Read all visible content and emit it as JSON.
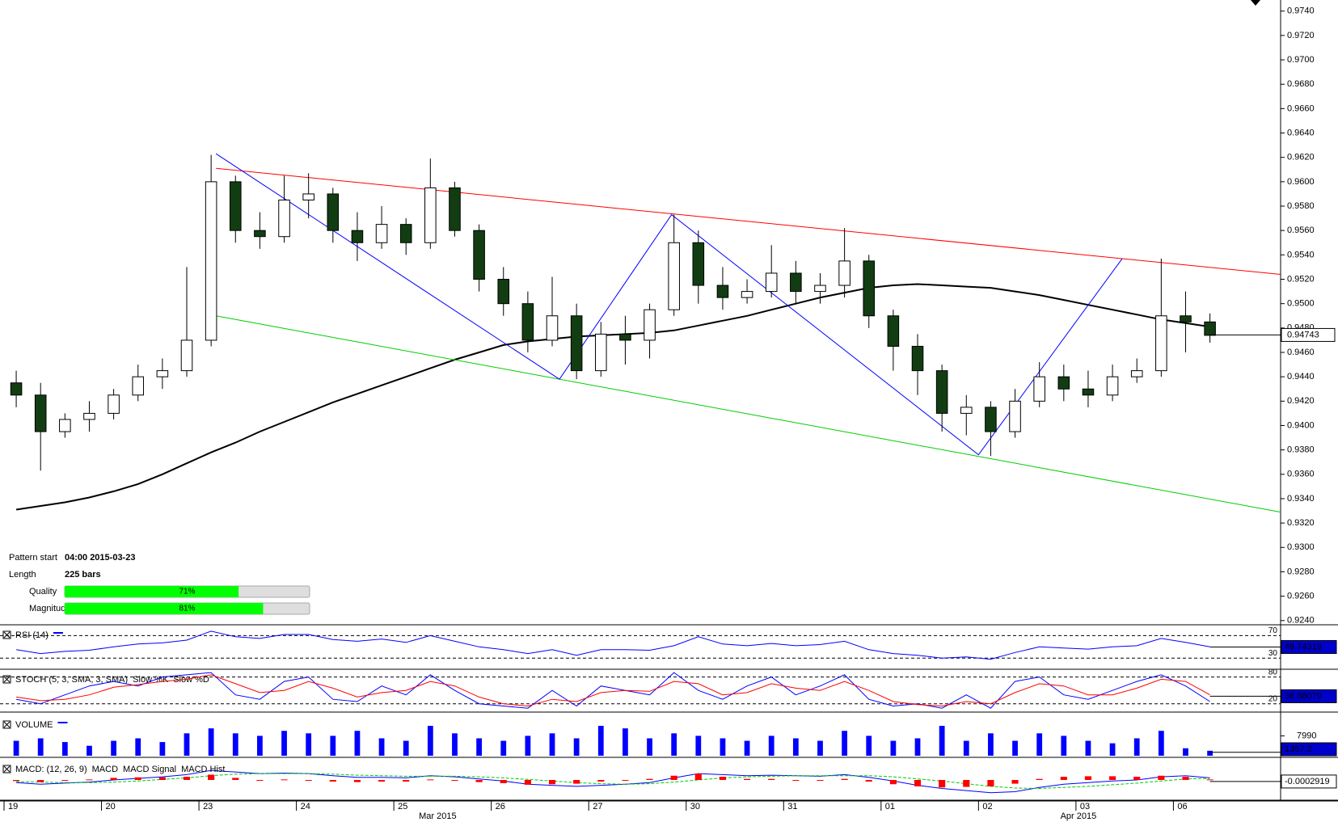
{
  "chart_data": {
    "type": "candlestick",
    "open": [
      0.9435,
      0.9425,
      0.9395,
      0.9405,
      0.941,
      0.9425,
      0.944,
      0.9445,
      0.947,
      0.96,
      0.956,
      0.9555,
      0.9585,
      0.959,
      0.956,
      0.955,
      0.9565,
      0.955,
      0.9595,
      0.956,
      0.952,
      0.95,
      0.947,
      0.949,
      0.9445,
      0.9475,
      0.947,
      0.9495,
      0.955,
      0.9515,
      0.9505,
      0.951,
      0.9525,
      0.951,
      0.9515,
      0.9535,
      0.949,
      0.9465,
      0.9445,
      0.941,
      0.9415,
      0.9395,
      0.942,
      0.944,
      0.943,
      0.9425,
      0.944,
      0.9445,
      0.949,
      0.9485
    ],
    "high": [
      0.9445,
      0.9435,
      0.941,
      0.942,
      0.943,
      0.945,
      0.9455,
      0.953,
      0.9622,
      0.9605,
      0.9575,
      0.9605,
      0.9607,
      0.9595,
      0.9575,
      0.958,
      0.957,
      0.9619,
      0.96,
      0.9565,
      0.953,
      0.951,
      0.9522,
      0.95,
      0.9485,
      0.949,
      0.95,
      0.9573,
      0.956,
      0.953,
      0.952,
      0.9548,
      0.9535,
      0.9525,
      0.9562,
      0.954,
      0.9495,
      0.9475,
      0.945,
      0.9425,
      0.942,
      0.943,
      0.9452,
      0.945,
      0.9445,
      0.945,
      0.9455,
      0.9537,
      0.951,
      0.9492
    ],
    "low": [
      0.9415,
      0.9363,
      0.939,
      0.9395,
      0.9405,
      0.942,
      0.943,
      0.944,
      0.9465,
      0.955,
      0.9545,
      0.955,
      0.957,
      0.955,
      0.9535,
      0.9545,
      0.954,
      0.9545,
      0.9555,
      0.951,
      0.949,
      0.946,
      0.9465,
      0.9438,
      0.944,
      0.945,
      0.9455,
      0.949,
      0.95,
      0.9495,
      0.95,
      0.9505,
      0.95,
      0.95,
      0.9505,
      0.948,
      0.9445,
      0.9425,
      0.9395,
      0.9392,
      0.9375,
      0.939,
      0.9415,
      0.942,
      0.9415,
      0.942,
      0.9435,
      0.944,
      0.946,
      0.9468
    ],
    "close": [
      0.9425,
      0.9395,
      0.9405,
      0.941,
      0.9425,
      0.944,
      0.9445,
      0.947,
      0.96,
      0.956,
      0.9555,
      0.9585,
      0.959,
      0.956,
      0.955,
      0.9565,
      0.955,
      0.9595,
      0.956,
      0.952,
      0.95,
      0.947,
      0.949,
      0.9445,
      0.9475,
      0.947,
      0.9495,
      0.955,
      0.9515,
      0.9505,
      0.951,
      0.9525,
      0.951,
      0.9515,
      0.9535,
      0.949,
      0.9465,
      0.9445,
      0.941,
      0.9415,
      0.9395,
      0.942,
      0.944,
      0.943,
      0.9425,
      0.944,
      0.9445,
      0.949,
      0.9485,
      0.9474
    ],
    "up_color": "#ffffff",
    "down_color": "#123d12",
    "xlim": [
      0,
      52.4
    ],
    "ylim": [
      0.92372,
      0.97491
    ],
    "yticks": [
      {
        "value": 0.974,
        "label": "0.9740"
      },
      {
        "value": 0.972,
        "label": "0.9720"
      },
      {
        "value": 0.97,
        "label": "0.9700"
      },
      {
        "value": 0.968,
        "label": "0.9680"
      },
      {
        "value": 0.966,
        "label": "0.9660"
      },
      {
        "value": 0.964,
        "label": "0.9640"
      },
      {
        "value": 0.962,
        "label": "0.9620"
      },
      {
        "value": 0.96,
        "label": "0.9600"
      },
      {
        "value": 0.958,
        "label": "0.9580"
      },
      {
        "value": 0.956,
        "label": "0.9560"
      },
      {
        "value": 0.954,
        "label": "0.9540"
      },
      {
        "value": 0.952,
        "label": "0.9520"
      },
      {
        "value": 0.95,
        "label": "0.9500"
      },
      {
        "value": 0.948,
        "label": "0.9480"
      },
      {
        "value": 0.946,
        "label": "0.9460"
      },
      {
        "value": 0.944,
        "label": "0.9440"
      },
      {
        "value": 0.942,
        "label": "0.9420"
      },
      {
        "value": 0.94,
        "label": "0.9400"
      },
      {
        "value": 0.938,
        "label": "0.9380"
      },
      {
        "value": 0.936,
        "label": "0.9360"
      },
      {
        "value": 0.934,
        "label": "0.9340"
      },
      {
        "value": 0.932,
        "label": "0.9320"
      },
      {
        "value": 0.93,
        "label": "0.9300"
      },
      {
        "value": 0.928,
        "label": "0.9280"
      },
      {
        "value": 0.926,
        "label": "0.9260"
      },
      {
        "value": 0.924,
        "label": "0.9240"
      }
    ],
    "x_labels": [
      {
        "value": 0,
        "label": "19"
      },
      {
        "value": 4,
        "label": "20"
      },
      {
        "value": 8,
        "label": "23"
      },
      {
        "value": 12,
        "label": "24"
      },
      {
        "value": 16,
        "label": "25"
      },
      {
        "value": 20,
        "label": "26"
      },
      {
        "value": 24,
        "label": "27"
      },
      {
        "value": 28,
        "label": "30"
      },
      {
        "value": 32,
        "label": "31"
      },
      {
        "value": 36,
        "label": "01"
      },
      {
        "value": 40,
        "label": "02"
      },
      {
        "value": 44,
        "label": "03"
      },
      {
        "value": 48,
        "label": "06"
      }
    ],
    "month_labels": [
      {
        "value": 17.8,
        "label": "Mar 2015"
      },
      {
        "value": 44.1,
        "label": "Apr 2015"
      }
    ],
    "moving_average": {
      "color": "#000000",
      "values": [
        0.9331,
        0.9334,
        0.9337,
        0.9341,
        0.9346,
        0.9352,
        0.936,
        0.9369,
        0.9378,
        0.9386,
        0.9395,
        0.9403,
        0.9411,
        0.9419,
        0.9426,
        0.9433,
        0.944,
        0.9447,
        0.9454,
        0.946,
        0.9466,
        0.9469,
        0.9471,
        0.9473,
        0.9474,
        0.9475,
        0.9476,
        0.9478,
        0.9482,
        0.9486,
        0.949,
        0.9495,
        0.95,
        0.9505,
        0.9509,
        0.9513,
        0.9515,
        0.9516,
        0.9515,
        0.9514,
        0.9513,
        0.951,
        0.9507,
        0.9503,
        0.9499,
        0.9495,
        0.9491,
        0.9487,
        0.9484,
        0.9481
      ]
    },
    "trend_lines": [
      {
        "color": "#ff0000",
        "x": [
          8.7,
          52.4
        ],
        "y": [
          0.9611,
          0.9524
        ]
      },
      {
        "color": "#00cc00",
        "x": [
          8.7,
          52.4
        ],
        "y": [
          0.949,
          0.9329
        ]
      },
      {
        "color": "#0000ff",
        "x": [
          8.7,
          22.8,
          27.4,
          40.0,
          45.9
        ],
        "y": [
          0.9623,
          0.9438,
          0.9573,
          0.9376,
          0.9537
        ]
      }
    ],
    "last_price": 0.94743,
    "panels": [
      {
        "type": "line",
        "title": "RSI (14)",
        "ylim": [
          13,
          85
        ],
        "levels": [
          70,
          30
        ],
        "last_value": 49.74319,
        "series": [
          {
            "color": "#0000ff",
            "values": [
              45,
              38,
              42,
              44,
              50,
              55,
              57,
              62,
              78,
              68,
              65,
              72,
              72,
              63,
              60,
              64,
              58,
              70,
              60,
              50,
              45,
              38,
              45,
              35,
              45,
              45,
              44,
              52,
              68,
              55,
              52,
              56,
              52,
              54,
              60,
              45,
              38,
              35,
              30,
              32,
              28,
              40,
              50,
              48,
              46,
              50,
              52,
              65,
              58,
              50
            ]
          }
        ]
      },
      {
        "type": "line",
        "title": "STOCH (5, 3, SMA, 3, SMA)",
        "ylim": [
          5,
          92
        ],
        "levels": [
          80,
          20
        ],
        "last_value": 36.88079,
        "series": [
          {
            "name": "Slow %K",
            "color": "#0000ff",
            "values": [
              30,
              20,
              40,
              60,
              70,
              60,
              80,
              85,
              90,
              40,
              30,
              70,
              80,
              30,
              25,
              60,
              40,
              85,
              50,
              20,
              15,
              10,
              50,
              15,
              60,
              50,
              40,
              90,
              50,
              30,
              60,
              80,
              40,
              60,
              85,
              30,
              15,
              20,
              10,
              40,
              10,
              70,
              80,
              40,
              30,
              50,
              70,
              85,
              60,
              25
            ]
          },
          {
            "name": "Slow %D",
            "color": "#ff0000",
            "values": [
              35,
              27,
              30,
              40,
              57,
              63,
              70,
              75,
              85,
              65,
              45,
              50,
              70,
              55,
              35,
              45,
              50,
              70,
              60,
              35,
              20,
              15,
              30,
              25,
              45,
              50,
              48,
              70,
              65,
              40,
              45,
              65,
              55,
              50,
              70,
              50,
              25,
              18,
              15,
              25,
              20,
              45,
              65,
              60,
              40,
              40,
              55,
              75,
              70,
              40
            ]
          }
        ]
      },
      {
        "type": "bar",
        "title": "VOLUME",
        "ylim": [
          0,
          15600
        ],
        "yticks": [
          7990
        ],
        "last_value": 1367.2,
        "series": [
          {
            "color": "#0000ff",
            "values": [
              6000,
              7000,
              5500,
              4000,
              6000,
              7000,
              5500,
              9000,
              11000,
              9000,
              8000,
              10000,
              9000,
              8000,
              10000,
              7000,
              6000,
              12000,
              9000,
              7000,
              6000,
              8000,
              9000,
              7000,
              12000,
              11000,
              7000,
              9000,
              8000,
              7000,
              6000,
              8000,
              7000,
              6000,
              10000,
              8000,
              6000,
              7000,
              12000,
              6000,
              9000,
              6000,
              9000,
              8000,
              6000,
              5000,
              7000,
              10000,
              3000,
              2000
            ]
          }
        ]
      },
      {
        "type": "macd",
        "title": "MACD: (12, 26, 9)",
        "ylim": [
          -0.0035,
          0.0035
        ],
        "last_value": {
          "value": -0.0002919,
          "label": "-0.0002919"
        },
        "series": [
          {
            "name": "MACD",
            "color": "#0000ff",
            "values": [
              -0.0005,
              -0.0008,
              -0.0006,
              -0.0004,
              0,
              0.0003,
              0.0006,
              0.001,
              0.0018,
              0.0015,
              0.0012,
              0.0013,
              0.0012,
              0.0008,
              0.0005,
              0.0005,
              0.0004,
              0.0008,
              0.0006,
              0.0002,
              -0.0002,
              -0.0008,
              -0.001,
              -0.0012,
              -0.001,
              -0.0008,
              -0.0005,
              0.0004,
              0.0012,
              0.001,
              0.0008,
              0.0009,
              0.0008,
              0.0007,
              0.001,
              0.0005,
              -0.0002,
              -0.001,
              -0.0016,
              -0.002,
              -0.0024,
              -0.0022,
              -0.0014,
              -0.0008,
              -0.0005,
              -0.0002,
              0,
              0.0006,
              0.0008,
              0.0004
            ]
          },
          {
            "name": "MACD Signal",
            "color": "#00cc00",
            "values": [
              -0.0003,
              -0.0004,
              -0.0005,
              -0.0005,
              -0.0004,
              -0.0002,
              0.0001,
              0.0004,
              0.0008,
              0.0011,
              0.0012,
              0.0012,
              0.0012,
              0.0011,
              0.0009,
              0.0008,
              0.0007,
              0.0007,
              0.0007,
              0.0006,
              0.0004,
              0.0001,
              -0.0002,
              -0.0005,
              -0.0007,
              -0.0008,
              -0.0007,
              -0.0004,
              0,
              0.0004,
              0.0006,
              0.0007,
              0.0008,
              0.0008,
              0.0008,
              0.0008,
              0.0006,
              0.0002,
              -0.0002,
              -0.0007,
              -0.0012,
              -0.0015,
              -0.0016,
              -0.0014,
              -0.0012,
              -0.0009,
              -0.0006,
              -0.0002,
              0.0002,
              0.0003
            ]
          },
          {
            "name": "MACD Hist",
            "color": "#ff0000",
            "values": [
              -0.0002,
              -0.0004,
              -0.0001,
              0.0001,
              0.0004,
              0.0005,
              0.0005,
              0.0006,
              0.001,
              0.0004,
              0,
              0.0001,
              0,
              -0.0003,
              -0.0004,
              -0.0003,
              -0.0003,
              0.0001,
              -0.0001,
              -0.0004,
              -0.0006,
              -0.0009,
              -0.0008,
              -0.0007,
              -0.0003,
              0,
              0.0002,
              0.0008,
              0.0012,
              0.0006,
              0.0002,
              0.0002,
              0,
              -0.0001,
              0.0002,
              -0.0003,
              -0.0008,
              -0.0012,
              -0.0014,
              -0.0013,
              -0.0012,
              -0.0007,
              0.0002,
              0.0006,
              0.0007,
              0.0007,
              0.0006,
              0.0008,
              0.0006,
              0.0001
            ]
          }
        ]
      }
    ]
  },
  "pattern_info": {
    "start_label": "Pattern start",
    "start_value": "04:00 2015-03-23",
    "length_label": "Length",
    "length_value": "225 bars",
    "quality_label": "Quality",
    "quality": {
      "value": 71,
      "label": "71%"
    },
    "magnitude_label": "Magnitude",
    "magnitude": {
      "value": 81,
      "label": "81%"
    },
    "bar_color": "#00ff00"
  }
}
